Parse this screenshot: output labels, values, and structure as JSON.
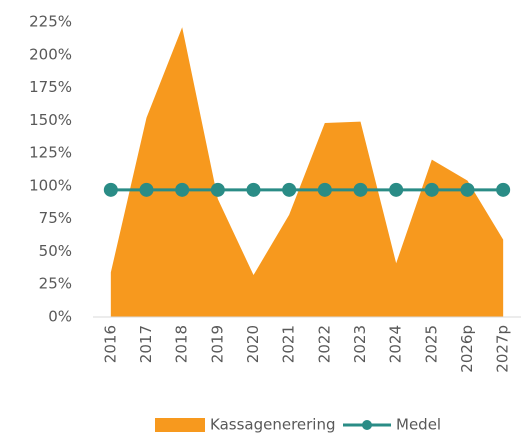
{
  "chart_data": {
    "type": "area-line",
    "categories": [
      "2016",
      "2017",
      "2018",
      "2019",
      "2020",
      "2021",
      "2022",
      "2023",
      "2024",
      "2025",
      "2026p",
      "2027p"
    ],
    "series": [
      {
        "name": "Kassagenerering",
        "type": "area",
        "color": "#f7991e",
        "values": [
          34,
          152,
          221,
          90,
          32,
          78,
          148,
          149,
          41,
          120,
          104,
          59
        ]
      },
      {
        "name": "Medel",
        "type": "line",
        "color": "#2a8c86",
        "values": [
          97,
          97,
          97,
          97,
          97,
          97,
          97,
          97,
          97,
          97,
          97,
          97
        ]
      }
    ],
    "ylim": [
      0,
      225
    ],
    "yticks": [
      {
        "value": 0,
        "label": "0%"
      },
      {
        "value": 25,
        "label": "25%"
      },
      {
        "value": 50,
        "label": "50%"
      },
      {
        "value": 75,
        "label": "75%"
      },
      {
        "value": 100,
        "label": "100%"
      },
      {
        "value": 125,
        "label": "125%"
      },
      {
        "value": 150,
        "label": "150%"
      },
      {
        "value": 175,
        "label": "175%"
      },
      {
        "value": 200,
        "label": "200%"
      },
      {
        "value": 225,
        "label": "225%"
      }
    ],
    "grid": false,
    "legend": "bottom"
  }
}
